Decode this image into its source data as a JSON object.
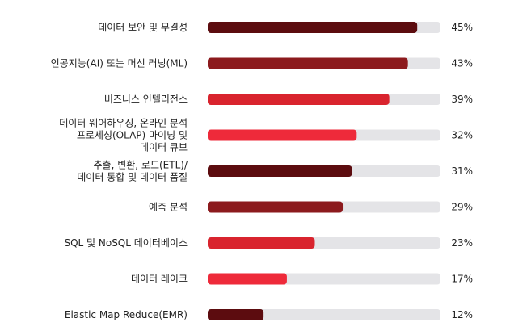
{
  "chart_data": {
    "type": "bar",
    "orientation": "horizontal",
    "categories": [
      [
        "데이터 보안 및 무결성"
      ],
      [
        "인공지능(AI) 또는 머신 러닝(ML)"
      ],
      [
        "비즈니스 인텔리전스"
      ],
      [
        "데이터 웨어하우징, 온라인 분석",
        "프로세싱(OLAP) 마이닝 및",
        "데이터 큐브"
      ],
      [
        "추출, 변환, 로드(ETL)/",
        "데이터 통합 및 데이터 품질"
      ],
      [
        "예측 분석"
      ],
      [
        "SQL 및 NoSQL 데이터베이스"
      ],
      [
        "데이터 레이크"
      ],
      [
        "Elastic Map Reduce(EMR)"
      ]
    ],
    "values": [
      45,
      43,
      39,
      32,
      31,
      29,
      23,
      17,
      12
    ],
    "value_labels": [
      "45%",
      "43%",
      "39%",
      "32%",
      "31%",
      "29%",
      "23%",
      "17%",
      "12%"
    ],
    "xlim": [
      0,
      50
    ],
    "colors": [
      "#5c0c0f",
      "#8c1a1d",
      "#d9242e",
      "#ee2a3a",
      "#5c0c0f",
      "#8c1a1d",
      "#d9242e",
      "#ee2a3a",
      "#5c0c0f"
    ],
    "track_color": "#e4e4e7",
    "title": "",
    "xlabel": "",
    "ylabel": "",
    "grid": false,
    "legend": "none"
  }
}
